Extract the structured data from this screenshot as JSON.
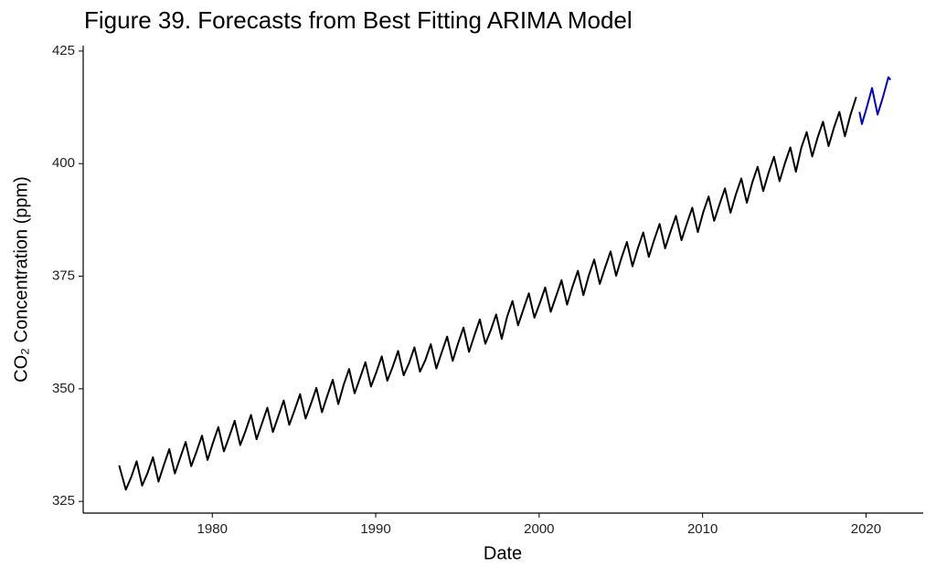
{
  "chart_data": {
    "type": "line",
    "title": "Figure 39. Forecasts from Best Fitting ARIMA Model",
    "x_label": "Date",
    "y_label": "CO₂ Concentration (ppm)",
    "xlim": [
      1972.1,
      2023.5
    ],
    "ylim": [
      322.4,
      426.2
    ],
    "xticks": [
      1980,
      1990,
      2000,
      2010,
      2020
    ],
    "yticks": [
      325,
      350,
      375,
      400,
      425
    ],
    "grid": false,
    "series": [
      {
        "color": "#000000",
        "x": [
          1974.3,
          1974.71,
          1975.04,
          1975.37,
          1975.71,
          1976.04,
          1976.37,
          1976.71,
          1977.04,
          1977.37,
          1977.71,
          1978.04,
          1978.37,
          1978.71,
          1979.04,
          1979.37,
          1979.71,
          1980.04,
          1980.37,
          1980.71,
          1981.04,
          1981.37,
          1981.71,
          1982.04,
          1982.37,
          1982.71,
          1983.04,
          1983.37,
          1983.71,
          1984.04,
          1984.37,
          1984.71,
          1985.04,
          1985.37,
          1985.71,
          1986.04,
          1986.37,
          1986.71,
          1987.04,
          1987.37,
          1987.71,
          1988.04,
          1988.37,
          1988.71,
          1989.04,
          1989.37,
          1989.71,
          1990.04,
          1990.37,
          1990.71,
          1991.04,
          1991.37,
          1991.71,
          1992.04,
          1992.37,
          1992.71,
          1993.04,
          1993.37,
          1993.71,
          1994.04,
          1994.37,
          1994.71,
          1995.04,
          1995.37,
          1995.71,
          1996.04,
          1996.37,
          1996.71,
          1997.04,
          1997.37,
          1997.71,
          1998.04,
          1998.37,
          1998.71,
          1999.04,
          1999.37,
          1999.71,
          2000.04,
          2000.37,
          2000.71,
          2001.04,
          2001.37,
          2001.71,
          2002.04,
          2002.37,
          2002.71,
          2003.04,
          2003.37,
          2003.71,
          2004.04,
          2004.37,
          2004.71,
          2005.04,
          2005.37,
          2005.71,
          2006.04,
          2006.37,
          2006.71,
          2007.04,
          2007.37,
          2007.71,
          2008.04,
          2008.37,
          2008.71,
          2009.04,
          2009.37,
          2009.71,
          2010.04,
          2010.37,
          2010.71,
          2011.04,
          2011.37,
          2011.71,
          2012.04,
          2012.37,
          2012.71,
          2013.04,
          2013.37,
          2013.71,
          2014.04,
          2014.37,
          2014.71,
          2015.04,
          2015.37,
          2015.71,
          2016.04,
          2016.37,
          2016.71,
          2017.04,
          2017.37,
          2017.71,
          2018.04,
          2018.37,
          2018.71,
          2019.04,
          2019.4
        ],
        "values": [
          333.0,
          327.6,
          330.4,
          333.9,
          328.5,
          331.3,
          334.8,
          329.4,
          333.1,
          336.6,
          331.2,
          334.7,
          338.2,
          332.8,
          336.1,
          339.6,
          334.2,
          338.0,
          341.5,
          336.1,
          339.4,
          342.9,
          337.5,
          340.7,
          344.2,
          338.8,
          342.3,
          345.8,
          340.4,
          343.9,
          347.4,
          342.0,
          345.3,
          348.8,
          343.4,
          346.7,
          350.2,
          344.8,
          348.5,
          352.0,
          346.6,
          350.9,
          354.4,
          349.0,
          352.4,
          355.9,
          350.5,
          353.7,
          357.2,
          351.8,
          354.9,
          358.4,
          353.0,
          355.7,
          359.2,
          353.8,
          356.4,
          359.9,
          354.5,
          358.1,
          361.6,
          356.2,
          360.1,
          363.6,
          358.2,
          361.9,
          365.4,
          360.0,
          363.0,
          366.5,
          361.1,
          366.0,
          369.5,
          364.1,
          367.7,
          371.2,
          365.8,
          369.0,
          372.5,
          367.1,
          370.6,
          374.1,
          368.7,
          372.7,
          376.2,
          370.8,
          375.2,
          378.7,
          373.3,
          377.0,
          380.5,
          375.1,
          379.1,
          382.6,
          377.2,
          381.2,
          384.7,
          379.3,
          383.1,
          386.6,
          381.2,
          384.9,
          388.4,
          383.0,
          386.7,
          390.2,
          384.8,
          389.2,
          392.7,
          387.3,
          391.0,
          394.5,
          389.1,
          393.2,
          396.7,
          391.3,
          395.8,
          399.3,
          393.9,
          398.0,
          401.5,
          396.1,
          400.1,
          403.6,
          398.2,
          403.5,
          407.0,
          401.6,
          405.8,
          409.3,
          403.9,
          408.0,
          411.5,
          406.1,
          410.7,
          414.8
        ]
      },
      {
        "color": "#0000cc",
        "x": [
          2019.6,
          2019.75,
          2020.04,
          2020.37,
          2020.71,
          2021.04,
          2021.37,
          2021.5
        ],
        "values": [
          411.5,
          408.8,
          412.4,
          416.8,
          410.9,
          414.8,
          419.2,
          418.6
        ]
      }
    ]
  }
}
